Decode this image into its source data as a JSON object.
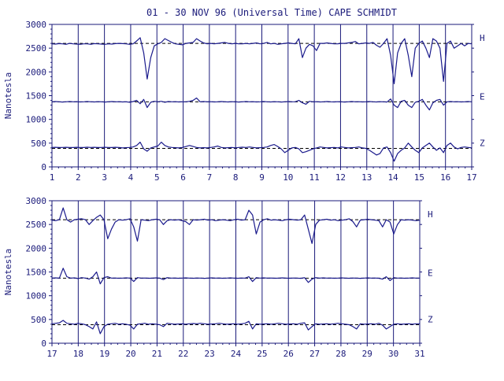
{
  "title": "01 - 30 NOV 96 (Universal Time) CAPE SCHMIDT",
  "ylabel": "Nanotesla",
  "colors": {
    "trace": "#1a1a8c",
    "axis": "#1a1a7a",
    "baseline": "#000000"
  },
  "chart_data": [
    {
      "type": "line",
      "panel": "top",
      "x_ticks": [
        "1",
        "2",
        "3",
        "4",
        "5",
        "6",
        "7",
        "8",
        "9",
        "10",
        "11",
        "12",
        "13",
        "14",
        "15",
        "16",
        "17"
      ],
      "xlim": [
        1,
        17
      ],
      "y_ticks": [
        "0",
        "500",
        "1000",
        "1500",
        "2000",
        "2500",
        "3000"
      ],
      "ylim": [
        0,
        3000
      ],
      "series": [
        {
          "name": "H",
          "baseline": 2600,
          "values": [
            2590,
            2585,
            2595,
            2590,
            2580,
            2600,
            2590,
            2585,
            2580,
            2590,
            2590,
            2580,
            2595,
            2590,
            2585,
            2580,
            2590,
            2585,
            2595,
            2600,
            2595,
            2590,
            2580,
            2590,
            2650,
            2720,
            2400,
            1850,
            2300,
            2550,
            2590,
            2620,
            2700,
            2660,
            2620,
            2590,
            2580,
            2570,
            2600,
            2610,
            2620,
            2700,
            2650,
            2610,
            2590,
            2600,
            2590,
            2600,
            2610,
            2620,
            2600,
            2590,
            2600,
            2590,
            2590,
            2600,
            2590,
            2600,
            2610,
            2590,
            2600,
            2620,
            2590,
            2600,
            2580,
            2590,
            2600,
            2610,
            2600,
            2590,
            2700,
            2300,
            2500,
            2580,
            2550,
            2450,
            2600,
            2600,
            2610,
            2600,
            2590,
            2590,
            2600,
            2600,
            2610,
            2620,
            2640,
            2590,
            2600,
            2610,
            2600,
            2620,
            2560,
            2520,
            2600,
            2700,
            2350,
            1750,
            2400,
            2600,
            2700,
            2350,
            1900,
            2500,
            2600,
            2650,
            2500,
            2300,
            2700,
            2650,
            2500,
            1800,
            2600,
            2650,
            2500,
            2550,
            2600,
            2550,
            2600,
            2590
          ]
        },
        {
          "name": "E",
          "baseline": 1370,
          "values": [
            1370,
            1375,
            1370,
            1365,
            1370,
            1375,
            1370,
            1372,
            1368,
            1370,
            1375,
            1370,
            1368,
            1372,
            1370,
            1365,
            1370,
            1375,
            1370,
            1372,
            1368,
            1370,
            1360,
            1375,
            1400,
            1330,
            1420,
            1250,
            1360,
            1380,
            1370,
            1380,
            1360,
            1375,
            1370,
            1372,
            1368,
            1370,
            1370,
            1380,
            1400,
            1450,
            1370,
            1375,
            1370,
            1372,
            1368,
            1370,
            1375,
            1370,
            1368,
            1372,
            1370,
            1365,
            1370,
            1375,
            1370,
            1372,
            1368,
            1370,
            1375,
            1370,
            1368,
            1372,
            1370,
            1365,
            1370,
            1375,
            1370,
            1372,
            1400,
            1350,
            1320,
            1380,
            1370,
            1372,
            1368,
            1370,
            1375,
            1370,
            1368,
            1372,
            1370,
            1365,
            1370,
            1375,
            1370,
            1372,
            1368,
            1370,
            1375,
            1370,
            1368,
            1372,
            1370,
            1365,
            1430,
            1300,
            1250,
            1380,
            1400,
            1300,
            1250,
            1360,
            1380,
            1420,
            1300,
            1200,
            1350,
            1400,
            1420,
            1300,
            1370,
            1375,
            1370,
            1372,
            1368,
            1370,
            1375,
            1370
          ]
        },
        {
          "name": "Z",
          "baseline": 390,
          "values": [
            410,
            412,
            408,
            410,
            412,
            410,
            408,
            412,
            410,
            408,
            415,
            410,
            412,
            408,
            410,
            412,
            410,
            408,
            412,
            410,
            400,
            405,
            410,
            420,
            450,
            520,
            380,
            330,
            400,
            420,
            440,
            520,
            450,
            420,
            410,
            405,
            400,
            410,
            430,
            450,
            430,
            410,
            400,
            405,
            400,
            410,
            420,
            440,
            410,
            400,
            405,
            410,
            400,
            410,
            415,
            410,
            420,
            410,
            400,
            405,
            410,
            420,
            450,
            470,
            430,
            380,
            300,
            350,
            400,
            410,
            380,
            300,
            320,
            350,
            380,
            400,
            420,
            410,
            400,
            405,
            410,
            400,
            420,
            410,
            400,
            405,
            410,
            420,
            400,
            390,
            350,
            300,
            250,
            280,
            400,
            420,
            300,
            120,
            280,
            350,
            400,
            500,
            420,
            350,
            300,
            400,
            450,
            500,
            420,
            350,
            400,
            300,
            450,
            500,
            420,
            380,
            410,
            420,
            410,
            400
          ]
        }
      ]
    },
    {
      "type": "line",
      "panel": "bottom",
      "x_ticks": [
        "17",
        "18",
        "19",
        "20",
        "21",
        "22",
        "23",
        "24",
        "25",
        "26",
        "27",
        "28",
        "29",
        "30",
        "31"
      ],
      "xlim": [
        17,
        31
      ],
      "y_ticks": [
        "0",
        "500",
        "1000",
        "1500",
        "2000",
        "2500",
        "3000"
      ],
      "ylim": [
        0,
        3000
      ],
      "series": [
        {
          "name": "H",
          "baseline": 2600,
          "values": [
            2590,
            2580,
            2600,
            2850,
            2600,
            2550,
            2600,
            2610,
            2620,
            2600,
            2500,
            2580,
            2650,
            2700,
            2600,
            2200,
            2400,
            2550,
            2600,
            2590,
            2600,
            2620,
            2450,
            2150,
            2600,
            2590,
            2580,
            2600,
            2610,
            2600,
            2500,
            2580,
            2600,
            2590,
            2600,
            2580,
            2560,
            2500,
            2600,
            2590,
            2600,
            2610,
            2590,
            2600,
            2580,
            2590,
            2600,
            2590,
            2580,
            2600,
            2610,
            2590,
            2600,
            2800,
            2700,
            2300,
            2550,
            2600,
            2620,
            2590,
            2600,
            2590,
            2580,
            2600,
            2610,
            2600,
            2590,
            2600,
            2700,
            2400,
            2100,
            2500,
            2590,
            2600,
            2610,
            2590,
            2600,
            2580,
            2590,
            2600,
            2620,
            2560,
            2450,
            2590,
            2600,
            2610,
            2600,
            2590,
            2580,
            2450,
            2600,
            2550,
            2300,
            2500,
            2600,
            2590,
            2600,
            2590,
            2580,
            2590
          ]
        },
        {
          "name": "E",
          "baseline": 1370,
          "values": [
            1370,
            1375,
            1370,
            1580,
            1400,
            1370,
            1375,
            1360,
            1380,
            1370,
            1350,
            1400,
            1500,
            1250,
            1380,
            1400,
            1370,
            1372,
            1368,
            1370,
            1375,
            1370,
            1300,
            1380,
            1370,
            1372,
            1368,
            1370,
            1375,
            1370,
            1340,
            1380,
            1370,
            1372,
            1368,
            1370,
            1375,
            1370,
            1368,
            1372,
            1370,
            1365,
            1370,
            1375,
            1370,
            1372,
            1368,
            1370,
            1375,
            1370,
            1368,
            1372,
            1370,
            1400,
            1300,
            1380,
            1370,
            1375,
            1370,
            1372,
            1368,
            1370,
            1375,
            1370,
            1368,
            1372,
            1370,
            1365,
            1380,
            1280,
            1350,
            1380,
            1370,
            1375,
            1370,
            1372,
            1368,
            1370,
            1375,
            1370,
            1368,
            1372,
            1370,
            1365,
            1370,
            1375,
            1370,
            1372,
            1368,
            1350,
            1400,
            1320,
            1380,
            1370,
            1372,
            1368,
            1370,
            1375,
            1370,
            1370
          ]
        },
        {
          "name": "Z",
          "baseline": 390,
          "values": [
            410,
            420,
            430,
            480,
            420,
            410,
            400,
            420,
            410,
            390,
            350,
            300,
            450,
            200,
            350,
            400,
            410,
            420,
            400,
            410,
            400,
            380,
            300,
            400,
            410,
            420,
            400,
            410,
            400,
            390,
            350,
            420,
            410,
            400,
            405,
            410,
            400,
            410,
            415,
            410,
            420,
            410,
            400,
            405,
            410,
            420,
            410,
            400,
            405,
            410,
            400,
            410,
            420,
            460,
            300,
            410,
            400,
            405,
            410,
            400,
            410,
            420,
            410,
            400,
            405,
            410,
            400,
            420,
            430,
            280,
            350,
            410,
            400,
            405,
            410,
            400,
            410,
            420,
            410,
            400,
            390,
            350,
            300,
            410,
            400,
            405,
            410,
            400,
            420,
            380,
            300,
            350,
            400,
            410,
            400,
            405,
            410,
            400,
            410,
            410
          ]
        }
      ]
    }
  ]
}
